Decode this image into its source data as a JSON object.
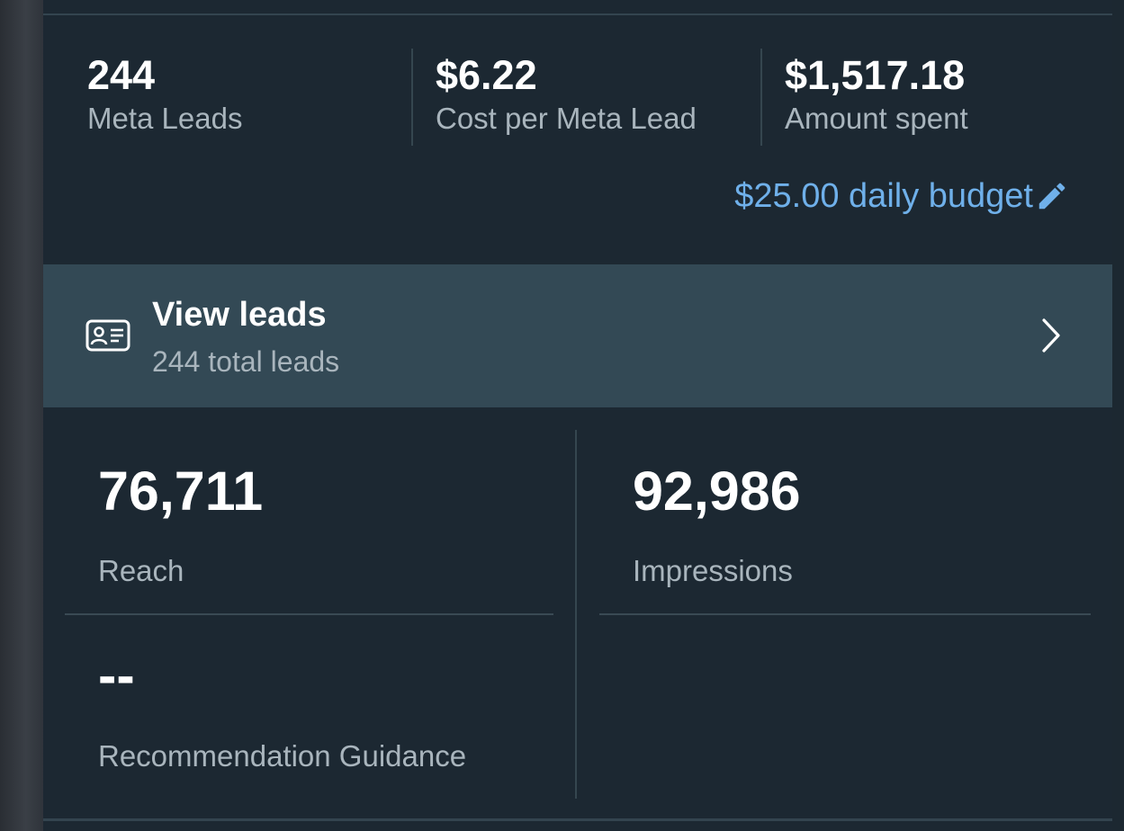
{
  "summary": {
    "stats": [
      {
        "value": "244",
        "label": "Meta Leads"
      },
      {
        "value": "$6.22",
        "label": "Cost per Meta Lead"
      },
      {
        "value": "$1,517.18",
        "label": "Amount spent"
      }
    ],
    "budget_label": "$25.00 daily budget",
    "budget_icon": "pencil-icon"
  },
  "leads": {
    "icon": "id-card-icon",
    "title": "View leads",
    "subtitle": "244 total leads",
    "chevron_icon": "chevron-right-icon"
  },
  "metrics": {
    "reach": {
      "value": "76,711",
      "label": "Reach"
    },
    "impressions": {
      "value": "92,986",
      "label": "Impressions"
    },
    "recommendation": {
      "value": "--",
      "label": "Recommendation Guidance"
    }
  },
  "colors": {
    "panel_bg": "#1c2832",
    "row_bg": "#334955",
    "accent": "#6fb0ea",
    "muted_text": "#a9b5bd"
  }
}
